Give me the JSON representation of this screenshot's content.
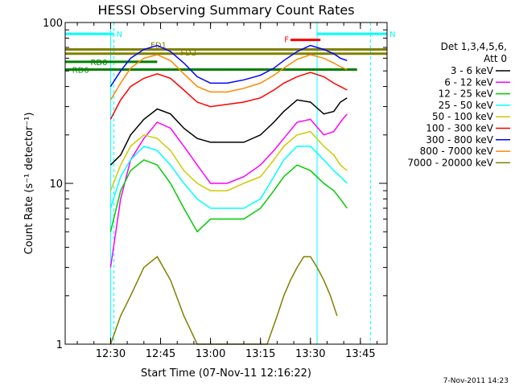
{
  "chart_data": {
    "type": "line",
    "title": "HESSI Observing Summary Count Rates",
    "xlabel": "Start Time (07-Nov-11 12:16:22)",
    "ylabel": "Count Rate (s⁻¹ detector⁻¹)",
    "yscale": "log",
    "ylim": [
      1,
      100
    ],
    "xlim": [
      "12:16:22",
      "13:53:00"
    ],
    "x_ticks": [
      "12:30",
      "12:45",
      "13:00",
      "13:15",
      "13:30",
      "13:45"
    ],
    "y_ticks": [
      "1",
      "10",
      "100"
    ],
    "legend_title": [
      "Det 1,3,4,5,6,",
      "Att 0"
    ],
    "legend_position": "right",
    "footer": "7-Nov-2011 14:23",
    "series": [
      {
        "name": "3 - 6 keV",
        "color": "#000000",
        "x": [
          "12:30",
          "12:33",
          "12:36",
          "12:40",
          "12:44",
          "12:48",
          "12:52",
          "12:56",
          "13:00",
          "13:05",
          "13:10",
          "13:15",
          "13:19",
          "13:22",
          "13:26",
          "13:30",
          "13:34",
          "13:37",
          "13:39",
          "13:41"
        ],
        "y": [
          13,
          15,
          20,
          25,
          29,
          27,
          22,
          19,
          18,
          18,
          18,
          20,
          24,
          28,
          33,
          32,
          27,
          28,
          32,
          34
        ]
      },
      {
        "name": "6 - 12 keV",
        "color": "#ff00ff",
        "x": [
          "12:30",
          "12:33",
          "12:36",
          "12:40",
          "12:44",
          "12:48",
          "12:52",
          "12:56",
          "13:00",
          "13:05",
          "13:10",
          "13:15",
          "13:19",
          "13:22",
          "13:26",
          "13:30",
          "13:34",
          "13:37",
          "13:39",
          "13:41"
        ],
        "y": [
          3,
          8,
          14,
          19,
          24,
          22,
          17,
          13,
          10,
          10,
          11,
          13,
          16,
          19,
          24,
          25,
          20,
          21,
          24,
          27
        ]
      },
      {
        "name": "12 - 25 keV",
        "color": "#00cc00",
        "x": [
          "12:30",
          "12:33",
          "12:36",
          "12:40",
          "12:44",
          "12:48",
          "12:52",
          "12:56",
          "13:00",
          "13:05",
          "13:10",
          "13:15",
          "13:19",
          "13:22",
          "13:26",
          "13:30",
          "13:34",
          "13:37",
          "13:39",
          "13:41"
        ],
        "y": [
          5,
          9,
          12,
          14,
          13,
          10,
          7,
          5,
          6,
          6,
          6,
          7,
          9,
          11,
          13,
          12,
          10,
          9,
          8,
          7
        ]
      },
      {
        "name": "25 - 50 keV",
        "color": "#00ffff",
        "x": [
          "12:30",
          "12:33",
          "12:36",
          "12:40",
          "12:44",
          "12:48",
          "12:52",
          "12:56",
          "13:00",
          "13:05",
          "13:10",
          "13:15",
          "13:19",
          "13:22",
          "13:26",
          "13:30",
          "13:34",
          "13:37",
          "13:39",
          "13:41"
        ],
        "y": [
          7,
          11,
          14,
          17,
          16,
          13,
          10,
          8,
          7,
          7,
          7,
          8,
          11,
          14,
          17,
          17,
          14,
          12,
          11,
          10
        ]
      },
      {
        "name": "50 - 100 keV",
        "color": "#cccc00",
        "x": [
          "12:30",
          "12:33",
          "12:36",
          "12:40",
          "12:44",
          "12:48",
          "12:52",
          "12:56",
          "13:00",
          "13:05",
          "13:10",
          "13:15",
          "13:19",
          "13:22",
          "13:26",
          "13:30",
          "13:34",
          "13:37",
          "13:39",
          "13:41"
        ],
        "y": [
          9,
          13,
          17,
          20,
          19,
          16,
          12,
          10,
          9,
          9,
          10,
          11,
          14,
          17,
          20,
          21,
          17,
          15,
          13,
          12
        ]
      },
      {
        "name": "100 - 300 keV",
        "color": "#ff0000",
        "x": [
          "12:30",
          "12:33",
          "12:36",
          "12:40",
          "12:44",
          "12:48",
          "12:52",
          "12:56",
          "13:00",
          "13:05",
          "13:10",
          "13:15",
          "13:19",
          "13:22",
          "13:26",
          "13:30",
          "13:34",
          "13:37",
          "13:39",
          "13:41"
        ],
        "y": [
          25,
          33,
          40,
          45,
          48,
          45,
          38,
          32,
          30,
          31,
          32,
          34,
          38,
          42,
          46,
          49,
          46,
          42,
          40,
          38
        ]
      },
      {
        "name": "300 - 800 keV",
        "color": "#0000ff",
        "x": [
          "12:30",
          "12:33",
          "12:36",
          "12:40",
          "12:44",
          "12:48",
          "12:52",
          "12:56",
          "13:00",
          "13:05",
          "13:10",
          "13:15",
          "13:19",
          "13:22",
          "13:26",
          "13:30",
          "13:34",
          "13:37",
          "13:39",
          "13:41"
        ],
        "y": [
          40,
          50,
          60,
          68,
          72,
          66,
          56,
          46,
          42,
          42,
          44,
          47,
          52,
          58,
          66,
          72,
          68,
          64,
          60,
          58
        ]
      },
      {
        "name": "800 - 7000 keV",
        "color": "#ff8800",
        "x": [
          "12:30",
          "12:33",
          "12:36",
          "12:40",
          "12:44",
          "12:48",
          "12:52",
          "12:56",
          "13:00",
          "13:05",
          "13:10",
          "13:15",
          "13:19",
          "13:22",
          "13:26",
          "13:30",
          "13:34",
          "13:37",
          "13:39",
          "13:41"
        ],
        "y": [
          33,
          42,
          52,
          60,
          63,
          58,
          48,
          40,
          37,
          37,
          39,
          42,
          47,
          52,
          59,
          63,
          60,
          56,
          53,
          51
        ]
      },
      {
        "name": "7000 - 20000 keV",
        "color": "#808000",
        "x": [
          "12:30",
          "12:33",
          "12:36",
          "12:40",
          "12:44",
          "12:48",
          "12:52",
          "12:56",
          "13:00",
          "13:10",
          "13:17",
          "13:20",
          "13:22",
          "13:24",
          "13:26",
          "13:28",
          "13:30",
          "13:32",
          "13:34",
          "13:36",
          "13:38"
        ],
        "y": [
          1,
          1.5,
          2,
          3,
          3.5,
          2.5,
          1.5,
          1,
          1,
          1,
          1,
          1.5,
          2,
          2.5,
          3,
          3.5,
          3.5,
          3,
          2.5,
          2,
          1.5
        ]
      }
    ],
    "flags": [
      {
        "label": "N",
        "color": "#00ffff",
        "x_start": "12:16:22",
        "x_end": "12:31:00",
        "y": 85
      },
      {
        "label": "N",
        "color": "#00ffff",
        "x_start": "13:32:00",
        "x_end": "13:53:00",
        "y": 85
      },
      {
        "label": "FD1",
        "color": "#808000",
        "x_start": "12:16:22",
        "x_end": "13:53:00",
        "y": 68
      },
      {
        "label": "FD2",
        "color": "#808000",
        "x_start": "12:16:22",
        "x_end": "13:53:00",
        "y": 64
      },
      {
        "label": "F",
        "color": "#ff0000",
        "x_start": "13:24:00",
        "x_end": "13:33:00",
        "y": 78
      },
      {
        "label": "RD0",
        "color": "#008000",
        "x_start": "12:16:22",
        "x_end": "12:44:00",
        "y": 57
      },
      {
        "label": "RD6",
        "color": "#008000",
        "x_start": "12:16:22",
        "x_end": "13:44:00",
        "y": 51
      }
    ],
    "vertical_markers": [
      {
        "x": "12:16:22",
        "color": "#00ffff",
        "style": "solid"
      },
      {
        "x": "12:30:00",
        "color": "#00ffff",
        "style": "solid"
      },
      {
        "x": "12:31:00",
        "color": "#00ffff",
        "style": "dashed"
      },
      {
        "x": "13:32:00",
        "color": "#00ffff",
        "style": "solid"
      },
      {
        "x": "13:48:00",
        "color": "#00ffff",
        "style": "dashed"
      }
    ]
  }
}
